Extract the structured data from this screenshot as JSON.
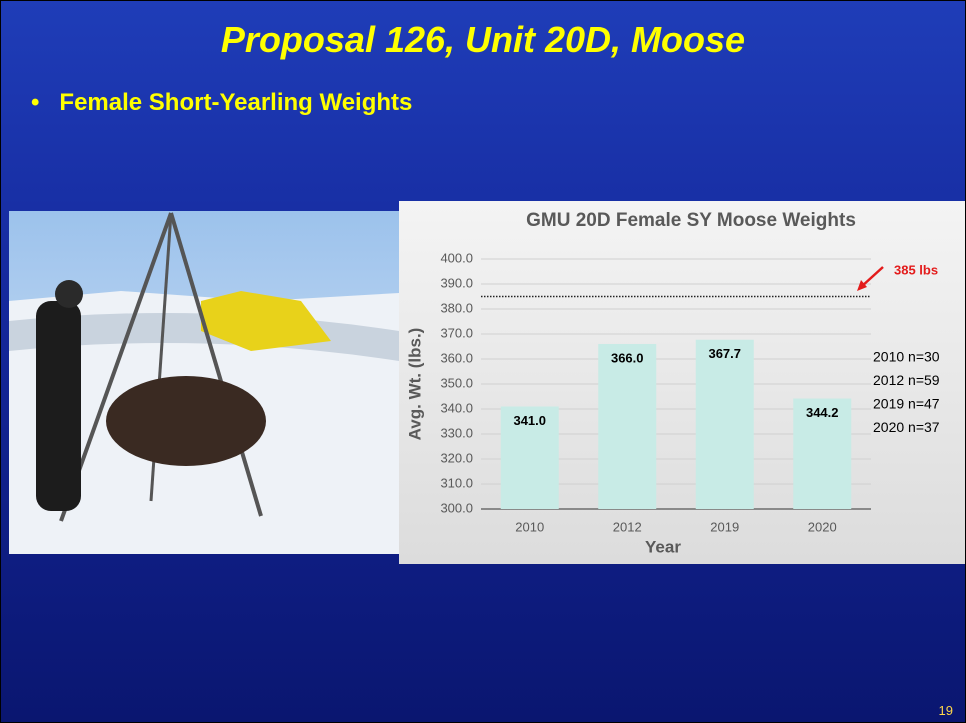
{
  "slide": {
    "title": "Proposal 126, Unit 20D, Moose",
    "bullet": "Female Short-Yearling Weights",
    "page_number": "19"
  },
  "chart_data": {
    "type": "bar",
    "title": "GMU 20D Female SY Moose Weights",
    "x_label": "Year",
    "y_label": "Avg. Wt. (lbs.)",
    "categories": [
      "2010",
      "2012",
      "2019",
      "2020"
    ],
    "values": [
      341.0,
      366.0,
      367.7,
      344.2
    ],
    "value_labels": [
      "341.0",
      "366.0",
      "367.7",
      "344.2"
    ],
    "color": "#c8ebe6",
    "ylim": [
      300,
      400
    ],
    "yticks": [
      {
        "value": 300,
        "label": "300.0"
      },
      {
        "value": 310,
        "label": "310.0"
      },
      {
        "value": 320,
        "label": "320.0"
      },
      {
        "value": 330,
        "label": "330.0"
      },
      {
        "value": 340,
        "label": "340.0"
      },
      {
        "value": 350,
        "label": "350.0"
      },
      {
        "value": 360,
        "label": "360.0"
      },
      {
        "value": 370,
        "label": "370.0"
      },
      {
        "value": 380,
        "label": "380.0"
      },
      {
        "value": 390,
        "label": "390.0"
      },
      {
        "value": 400,
        "label": "400.0"
      }
    ],
    "grid": true,
    "reference_line": {
      "value": 385,
      "label": "385 lbs",
      "color": "#e31b1b"
    },
    "notes": [
      "2010 n=30",
      "2012 n=59",
      "2019 n=47",
      "2020 n=37"
    ]
  }
}
